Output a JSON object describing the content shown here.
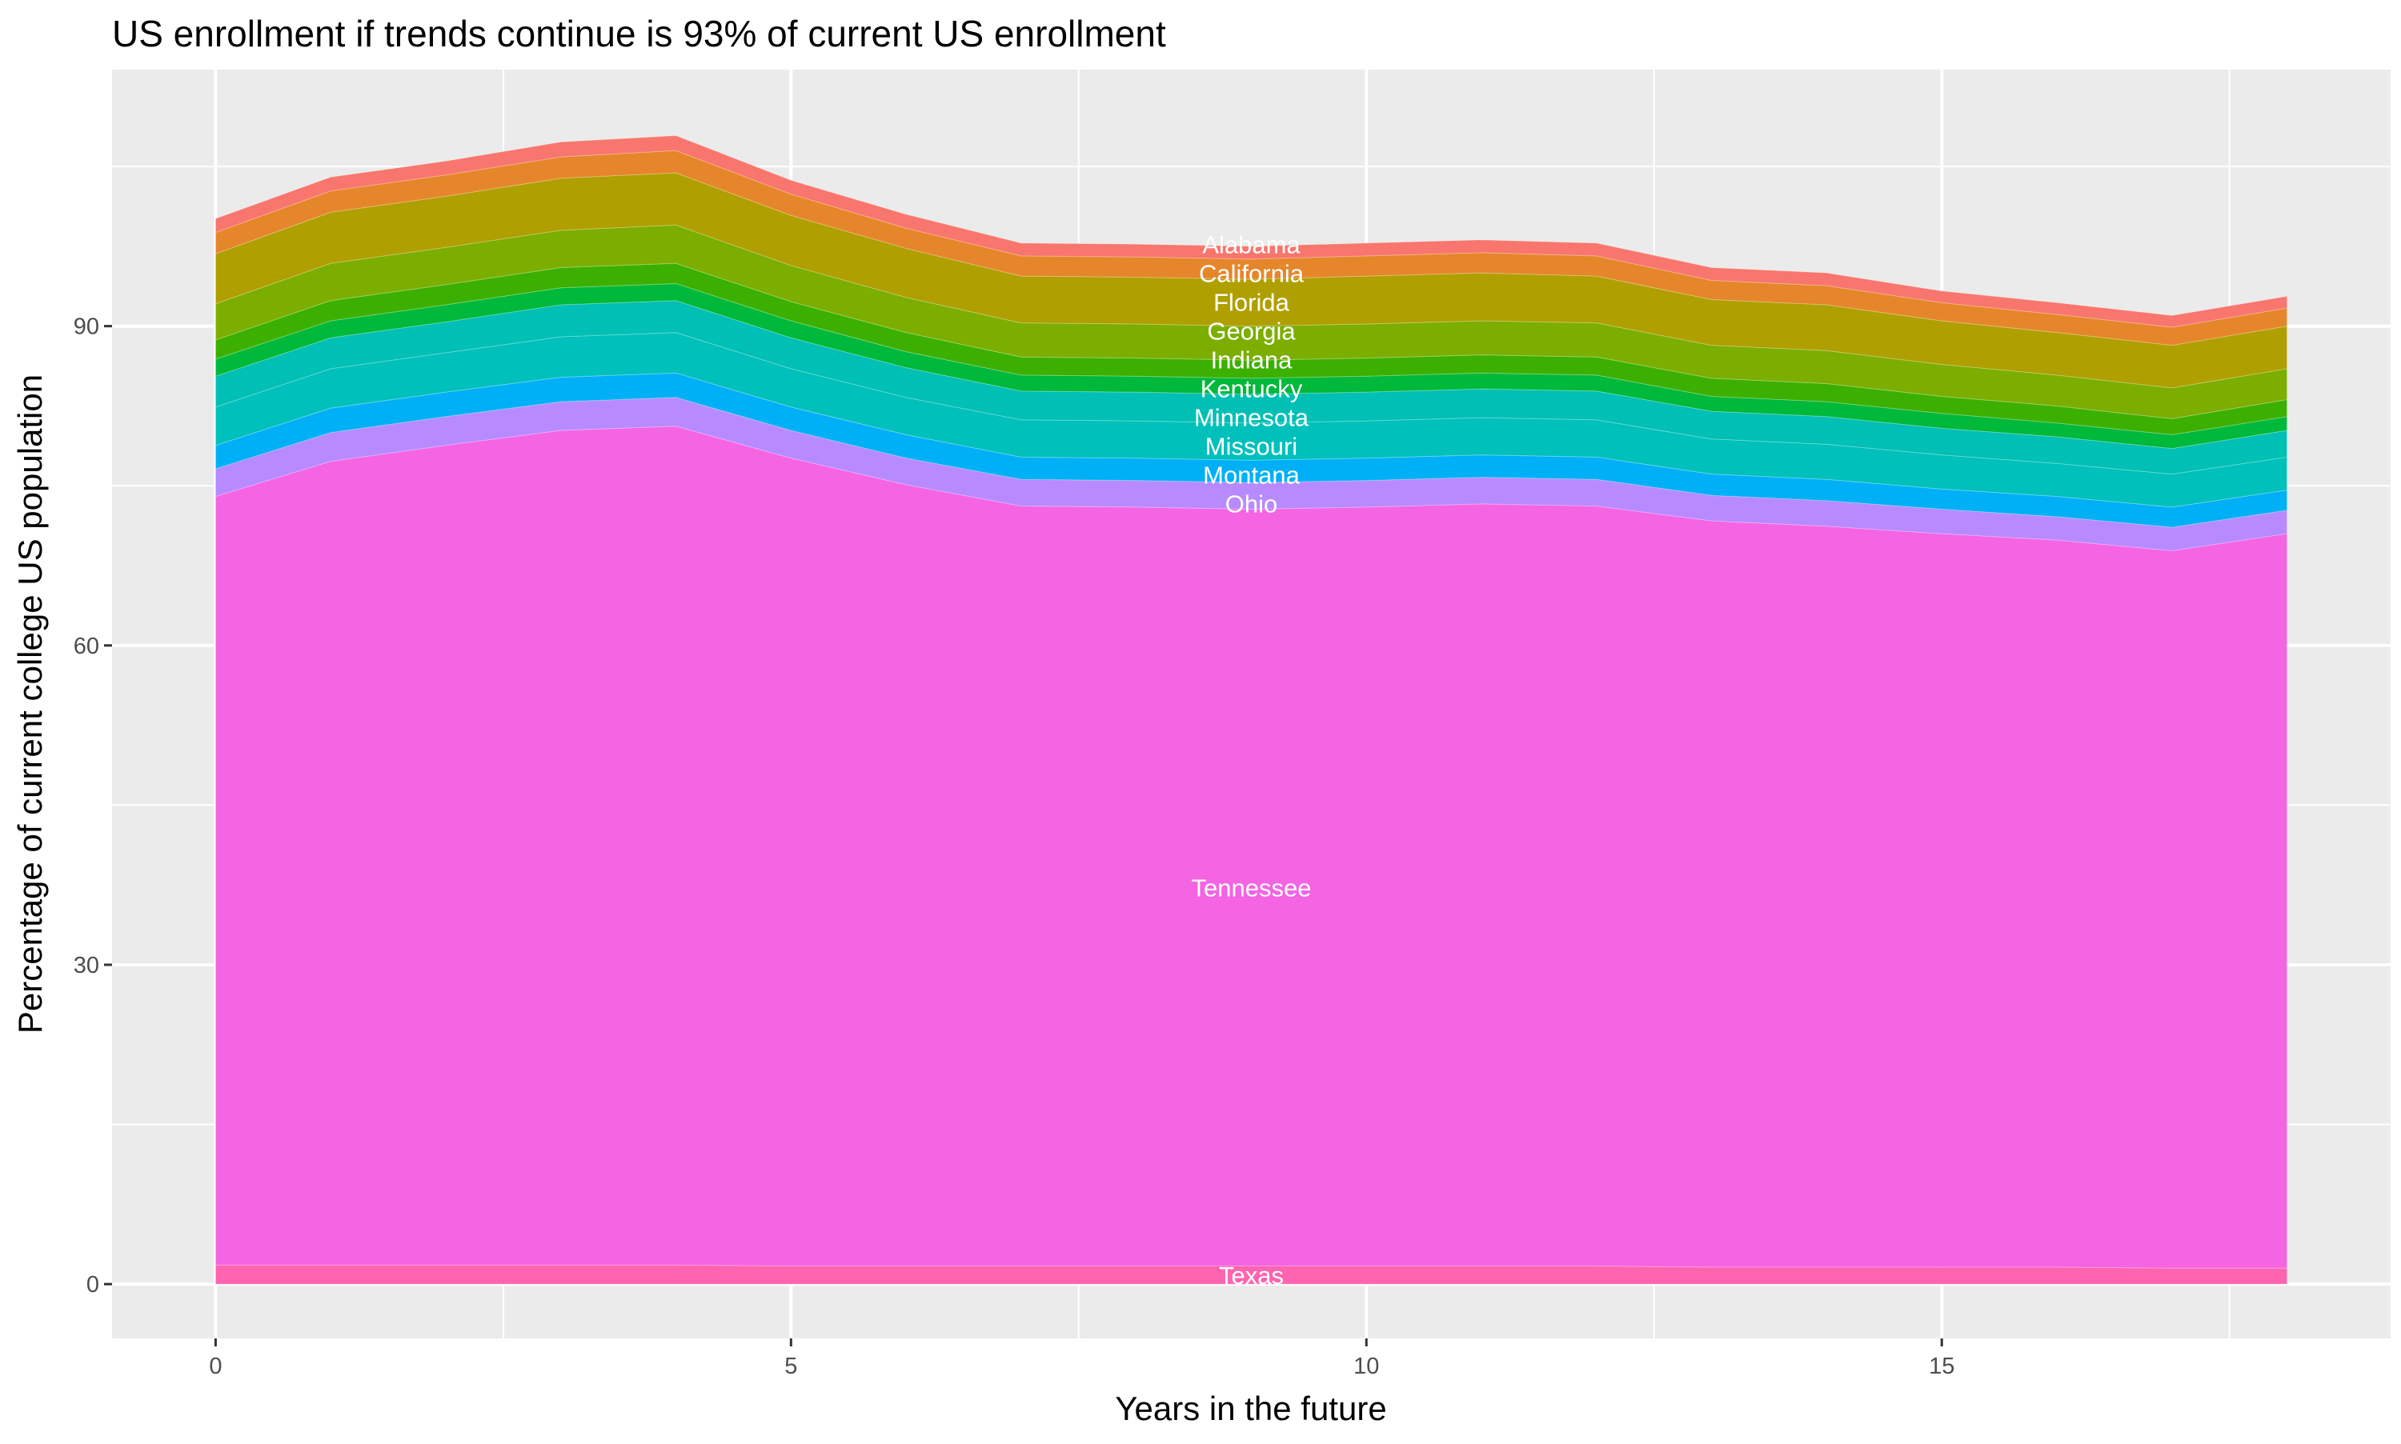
{
  "chart_data": {
    "type": "area",
    "stacked": true,
    "title": "US enrollment if trends continue is 93% of current US enrollment",
    "xlabel": "Years in the future",
    "ylabel": "Percentage of current college US population",
    "xlim": [
      -0.9,
      18.9
    ],
    "ylim": [
      -5.1,
      114.1
    ],
    "x_ticks": [
      0,
      5,
      10,
      15
    ],
    "y_ticks": [
      0,
      30,
      60,
      90
    ],
    "grid": true,
    "legend": "none",
    "background": "#EBEBEB",
    "x": [
      0,
      1,
      2,
      3,
      4,
      5,
      6,
      7,
      8,
      9,
      10,
      11,
      12,
      13,
      14,
      15,
      16,
      17,
      18
    ],
    "series": [
      {
        "name": "Texas",
        "color": "#FF64B0",
        "values": [
          1.8,
          1.8,
          1.8,
          1.8,
          1.8,
          1.7,
          1.7,
          1.7,
          1.7,
          1.7,
          1.7,
          1.7,
          1.7,
          1.6,
          1.6,
          1.6,
          1.6,
          1.5,
          1.5
        ]
      },
      {
        "name": "Tennessee",
        "color": "#F564E3",
        "values": [
          72.2,
          75.5,
          77.0,
          78.4,
          78.8,
          75.9,
          73.4,
          71.4,
          71.3,
          71.1,
          71.3,
          71.6,
          71.4,
          70.1,
          69.6,
          68.9,
          68.3,
          67.4,
          69.0
        ]
      },
      {
        "name": "Ohio",
        "color": "#B88AFF",
        "values": [
          2.6,
          2.7,
          2.7,
          2.7,
          2.7,
          2.6,
          2.5,
          2.5,
          2.5,
          2.5,
          2.5,
          2.5,
          2.5,
          2.4,
          2.4,
          2.3,
          2.2,
          2.2,
          2.2
        ]
      },
      {
        "name": "Montana",
        "color": "#00B0F6",
        "values": [
          2.2,
          2.3,
          2.3,
          2.3,
          2.3,
          2.2,
          2.2,
          2.1,
          2.1,
          2.1,
          2.1,
          2.1,
          2.1,
          2.0,
          2.0,
          1.9,
          1.9,
          1.9,
          1.9
        ]
      },
      {
        "name": "Missouri",
        "color": "#00C0BB",
        "values": [
          3.6,
          3.7,
          3.7,
          3.8,
          3.8,
          3.6,
          3.5,
          3.5,
          3.5,
          3.5,
          3.5,
          3.5,
          3.5,
          3.3,
          3.3,
          3.2,
          3.1,
          3.1,
          3.1
        ]
      },
      {
        "name": "Minnesota",
        "color": "#00BFB4",
        "values": [
          2.9,
          2.9,
          2.9,
          3.0,
          3.0,
          2.9,
          2.8,
          2.7,
          2.7,
          2.7,
          2.7,
          2.7,
          2.7,
          2.6,
          2.6,
          2.5,
          2.5,
          2.4,
          2.5
        ]
      },
      {
        "name": "Kentucky",
        "color": "#00B83A",
        "values": [
          1.6,
          1.6,
          1.6,
          1.6,
          1.6,
          1.6,
          1.5,
          1.5,
          1.5,
          1.5,
          1.5,
          1.5,
          1.5,
          1.4,
          1.4,
          1.4,
          1.3,
          1.3,
          1.3
        ]
      },
      {
        "name": "Indiana",
        "color": "#3CB000",
        "values": [
          1.8,
          1.9,
          1.9,
          1.9,
          1.9,
          1.8,
          1.8,
          1.7,
          1.7,
          1.7,
          1.7,
          1.7,
          1.7,
          1.7,
          1.7,
          1.6,
          1.6,
          1.5,
          1.6
        ]
      },
      {
        "name": "Georgia",
        "color": "#7CAE00",
        "values": [
          3.4,
          3.5,
          3.5,
          3.5,
          3.6,
          3.4,
          3.3,
          3.2,
          3.2,
          3.2,
          3.2,
          3.2,
          3.2,
          3.1,
          3.1,
          3.0,
          2.9,
          2.9,
          2.9
        ]
      },
      {
        "name": "Florida",
        "color": "#B09F00",
        "values": [
          4.7,
          4.8,
          4.8,
          4.9,
          4.9,
          4.7,
          4.6,
          4.4,
          4.4,
          4.4,
          4.5,
          4.5,
          4.4,
          4.3,
          4.3,
          4.1,
          4.0,
          4.0,
          4.0
        ]
      },
      {
        "name": "California",
        "color": "#E6862A",
        "values": [
          2.0,
          2.0,
          2.0,
          2.0,
          2.1,
          2.0,
          1.9,
          1.9,
          1.9,
          1.9,
          1.9,
          1.9,
          1.9,
          1.8,
          1.8,
          1.7,
          1.7,
          1.7,
          1.7
        ]
      },
      {
        "name": "Alabama",
        "color": "#F8766D",
        "values": [
          1.3,
          1.3,
          1.3,
          1.4,
          1.4,
          1.3,
          1.3,
          1.2,
          1.2,
          1.2,
          1.2,
          1.2,
          1.2,
          1.2,
          1.2,
          1.1,
          1.1,
          1.1,
          1.1
        ]
      }
    ],
    "label_x": 9
  }
}
